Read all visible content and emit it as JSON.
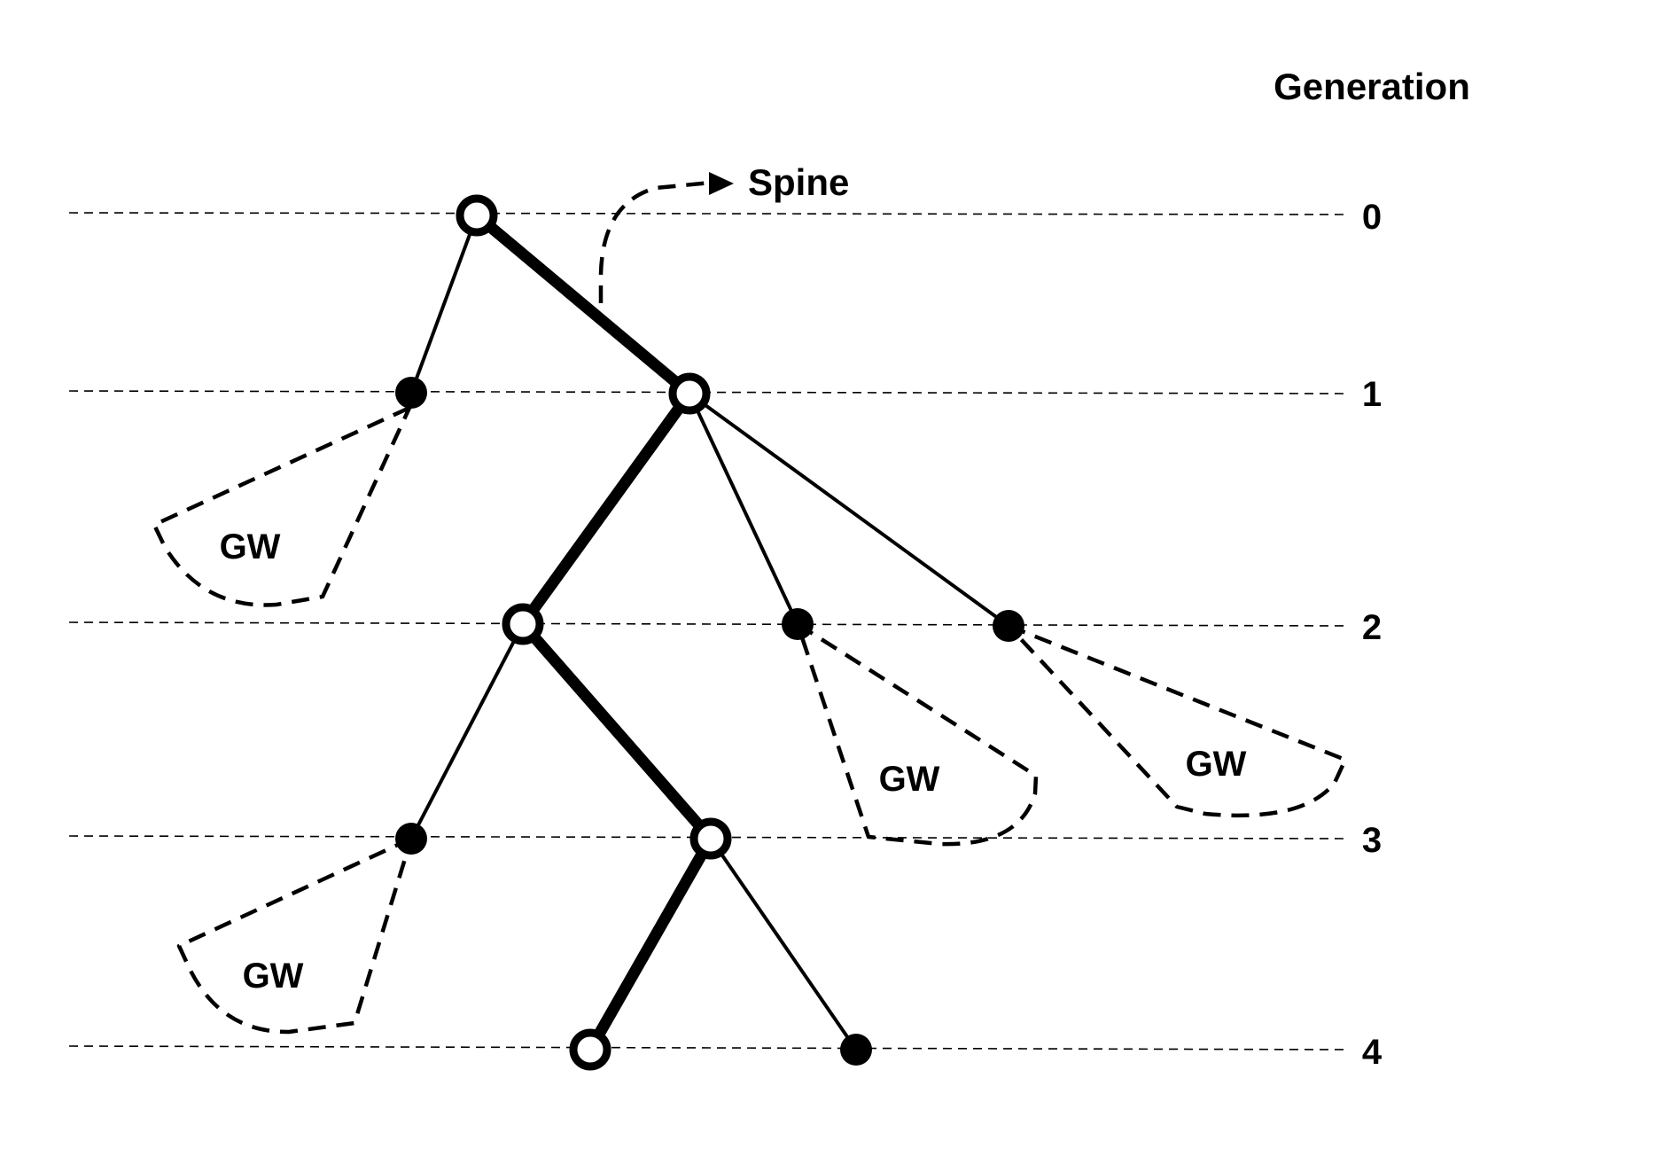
{
  "header": {
    "generation_label": "Generation"
  },
  "generations": [
    "0",
    "1",
    "2",
    "3",
    "4"
  ],
  "spine_label": "Spine",
  "subtree_label": "GW",
  "subtrees": [
    {
      "label": "GW",
      "parent": "n1a"
    },
    {
      "label": "GW",
      "parent": "n2b"
    },
    {
      "label": "GW",
      "parent": "n2c"
    },
    {
      "label": "GW",
      "parent": "n3a"
    }
  ],
  "nodes": [
    {
      "id": "s0",
      "generation": 0,
      "on_spine": true
    },
    {
      "id": "n1a",
      "generation": 1,
      "on_spine": false
    },
    {
      "id": "s1",
      "generation": 1,
      "on_spine": true
    },
    {
      "id": "s2",
      "generation": 2,
      "on_spine": true
    },
    {
      "id": "n2b",
      "generation": 2,
      "on_spine": false
    },
    {
      "id": "n2c",
      "generation": 2,
      "on_spine": false
    },
    {
      "id": "n3a",
      "generation": 3,
      "on_spine": false
    },
    {
      "id": "s3",
      "generation": 3,
      "on_spine": true
    },
    {
      "id": "s4",
      "generation": 4,
      "on_spine": true
    },
    {
      "id": "n4b",
      "generation": 4,
      "on_spine": false
    }
  ],
  "edges": [
    {
      "from": "s0",
      "to": "n1a",
      "spine": false
    },
    {
      "from": "s0",
      "to": "s1",
      "spine": true
    },
    {
      "from": "s1",
      "to": "s2",
      "spine": true
    },
    {
      "from": "s1",
      "to": "n2b",
      "spine": false
    },
    {
      "from": "s1",
      "to": "n2c",
      "spine": false
    },
    {
      "from": "s2",
      "to": "n3a",
      "spine": false
    },
    {
      "from": "s2",
      "to": "s3",
      "spine": true
    },
    {
      "from": "s3",
      "to": "s4",
      "spine": true
    },
    {
      "from": "s3",
      "to": "n4b",
      "spine": false
    }
  ],
  "colors": {
    "ink": "#000000",
    "background": "#ffffff"
  }
}
